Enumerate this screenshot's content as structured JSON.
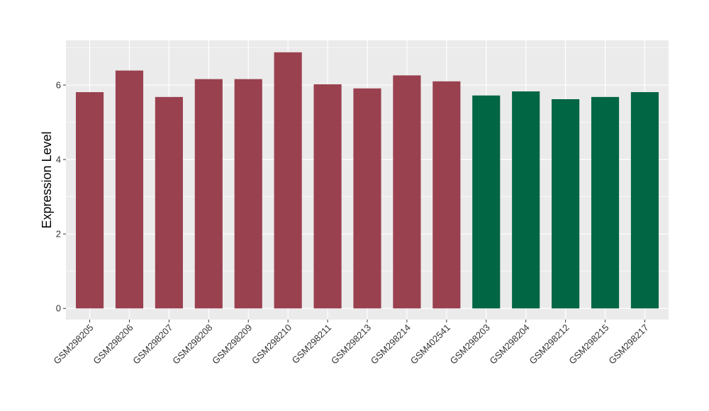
{
  "chart_data": {
    "type": "bar",
    "ylabel": "Expression Level",
    "xlabel": "",
    "title": "",
    "ylim": [
      -0.3,
      7.2
    ],
    "y_ticks": [
      0,
      2,
      4,
      6
    ],
    "grid": true,
    "categories": [
      "GSM298205",
      "GSM298206",
      "GSM298207",
      "GSM298208",
      "GSM298209",
      "GSM298210",
      "GSM298211",
      "GSM298213",
      "GSM298214",
      "GSM402541",
      "GSM298203",
      "GSM298204",
      "GSM298212",
      "GSM298215",
      "GSM298217"
    ],
    "values": [
      5.81,
      6.39,
      5.68,
      6.16,
      6.16,
      6.88,
      6.02,
      5.91,
      6.26,
      6.1,
      5.72,
      5.83,
      5.62,
      5.68,
      5.81
    ],
    "group_colors": {
      "group1": "#9a4150",
      "group2": "#006643"
    },
    "bar_groups": [
      "group1",
      "group1",
      "group1",
      "group1",
      "group1",
      "group1",
      "group1",
      "group1",
      "group1",
      "group1",
      "group2",
      "group2",
      "group2",
      "group2",
      "group2"
    ],
    "panel_background": "#ebebeb",
    "gridline_color": "#ffffff"
  }
}
